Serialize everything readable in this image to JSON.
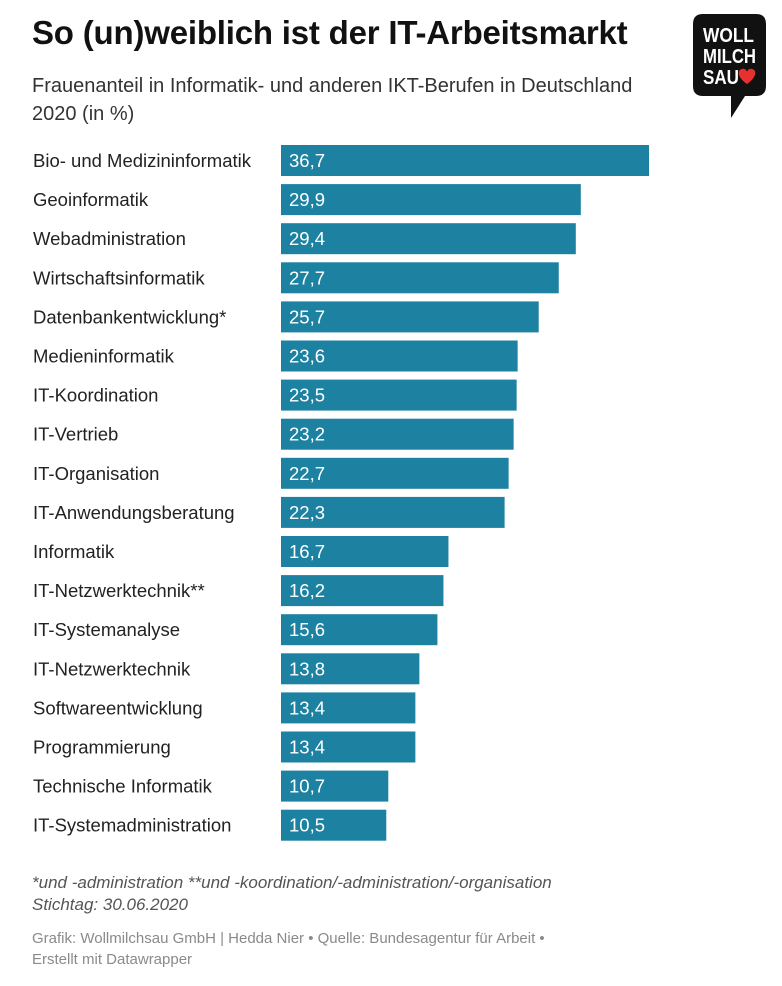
{
  "header": {
    "title": "So (un)weiblich ist der IT-Arbeitsmarkt",
    "subtitle": "Frauenanteil in Informatik- und anderen IKT-Berufen in Deutschland 2020 (in %)"
  },
  "logo": {
    "lines": [
      "WOLL",
      "MILCH",
      "SAU"
    ],
    "icon": "heart-icon",
    "colors": {
      "background": "#111111",
      "text": "#ffffff",
      "heart": "#e8312f"
    }
  },
  "colors": {
    "bar": "#1d82a2",
    "value_text": "#ffffff",
    "label_text": "#222222"
  },
  "chart_data": {
    "type": "bar",
    "orientation": "horizontal",
    "categories": [
      "Bio- und Medizininformatik",
      "Geoinformatik",
      "Webadministration",
      "Wirtschaftsinformatik",
      "Datenbankentwicklung*",
      "Medieninformatik",
      "IT-Koordination",
      "IT-Vertrieb",
      "IT-Organisation",
      "IT-Anwendungsberatung",
      "Informatik",
      "IT-Netzwerktechnik**",
      "IT-Systemanalyse",
      "IT-Netzwerktechnik",
      "Softwareentwicklung",
      "Programmierung",
      "Technische Informatik",
      "IT-Systemadministration"
    ],
    "values": [
      36.7,
      29.9,
      29.4,
      27.7,
      25.7,
      23.6,
      23.5,
      23.2,
      22.7,
      22.3,
      16.7,
      16.2,
      15.6,
      13.8,
      13.4,
      13.4,
      10.7,
      10.5
    ],
    "value_labels": [
      "36,7",
      "29,9",
      "29,4",
      "27,7",
      "25,7",
      "23,6",
      "23,5",
      "23,2",
      "22,7",
      "22,3",
      "16,7",
      "16,2",
      "15,6",
      "13,8",
      "13,4",
      "13,4",
      "10,7",
      "10,5"
    ],
    "xlim": [
      0,
      36.7
    ],
    "grid": false,
    "legend": "none"
  },
  "footer": {
    "notes": [
      "*und -administration **und -koordination/-administration/-organisation",
      "Stichtag: 30.06.2020"
    ],
    "source_lines": [
      "Grafik: Wollmilchsau GmbH | Hedda Nier • Quelle: Bundesagentur für Arbeit •",
      "Erstellt mit Datawrapper"
    ]
  }
}
